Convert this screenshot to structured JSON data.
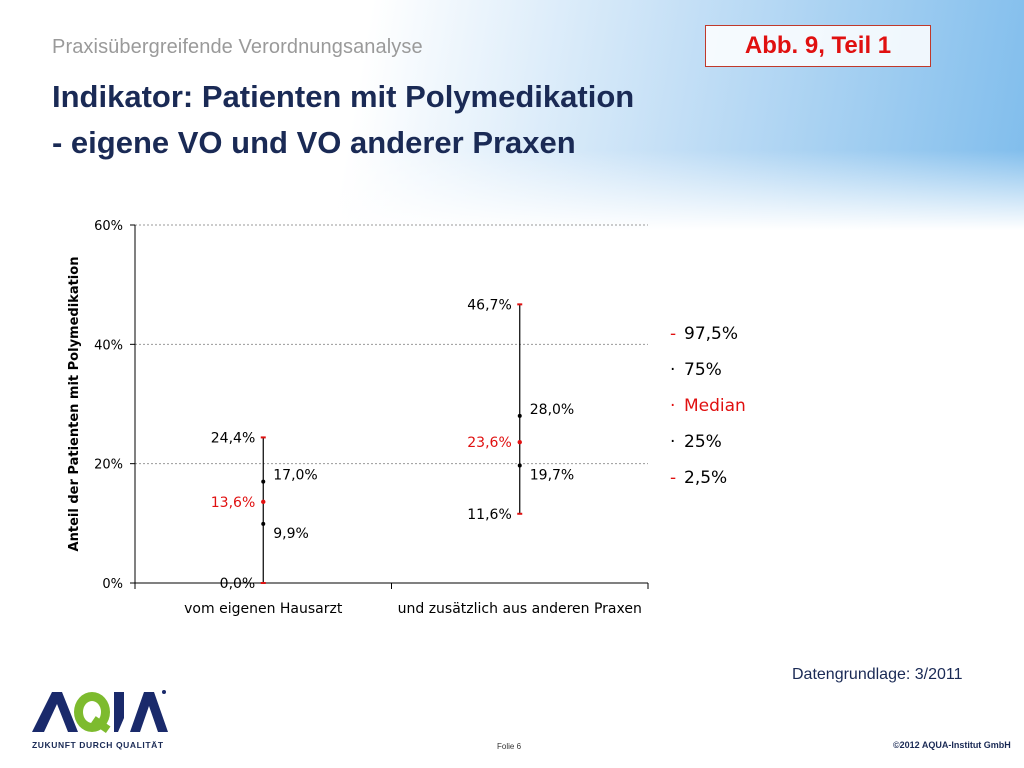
{
  "header": {
    "subtitle": "Praxisübergreifende Verordnungsanalyse",
    "title": "Indikator:  Patienten mit Polymedikation\n- eigene VO und VO anderer Praxen",
    "figure_label": "Abb. 9, Teil 1"
  },
  "colors": {
    "title": "#1a2a55",
    "accent_red": "#e01010",
    "axis": "#000000",
    "grid": "#999999"
  },
  "chart_data": {
    "type": "range",
    "ylabel": "Anteil der Patienten mit Polymedikation",
    "xlabel": "",
    "ylim": [
      0,
      60
    ],
    "yticks": [
      0,
      20,
      40,
      60
    ],
    "ytick_labels": [
      "0%",
      "20%",
      "40%",
      "60%"
    ],
    "grid": true,
    "legend_position": "right",
    "categories": [
      "vom eigenen Hausarzt",
      "und zusätzlich aus anderen Praxen"
    ],
    "series": [
      {
        "category": "vom eigenen Hausarzt",
        "p97_5": 24.4,
        "p75": 17.0,
        "median": 13.6,
        "p25": 9.9,
        "p2_5": 0.0,
        "labels": {
          "p97_5": "24,4%",
          "p75": "17,0%",
          "median": "13,6%",
          "p25": "9,9%",
          "p2_5": "0,0%"
        }
      },
      {
        "category": "und zusätzlich aus anderen Praxen",
        "p97_5": 46.7,
        "p75": 28.0,
        "median": 23.6,
        "p25": 19.7,
        "p2_5": 11.6,
        "labels": {
          "p97_5": "46,7%",
          "p75": "28,0%",
          "median": "23,6%",
          "p25": "19,7%",
          "p2_5": "11,6%"
        }
      }
    ],
    "legend": [
      {
        "symbol": "-",
        "label": "97,5%",
        "color": "#e01010",
        "text_color": "#000000"
      },
      {
        "symbol": "·",
        "label": "75%",
        "color": "#000000",
        "text_color": "#000000"
      },
      {
        "symbol": "·",
        "label": "Median",
        "color": "#e01010",
        "text_color": "#e01010"
      },
      {
        "symbol": "·",
        "label": "25%",
        "color": "#000000",
        "text_color": "#000000"
      },
      {
        "symbol": "-",
        "label": "2,5%",
        "color": "#e01010",
        "text_color": "#000000"
      }
    ]
  },
  "footer": {
    "datengrundlage": "Datengrundlage: 3/2011",
    "logo_text": "AQUA",
    "logo_tagline": "ZUKUNFT DURCH QUALITÄT",
    "slide_label": "Folie 6",
    "copyright": "©2012 AQUA-Institut GmbH"
  }
}
